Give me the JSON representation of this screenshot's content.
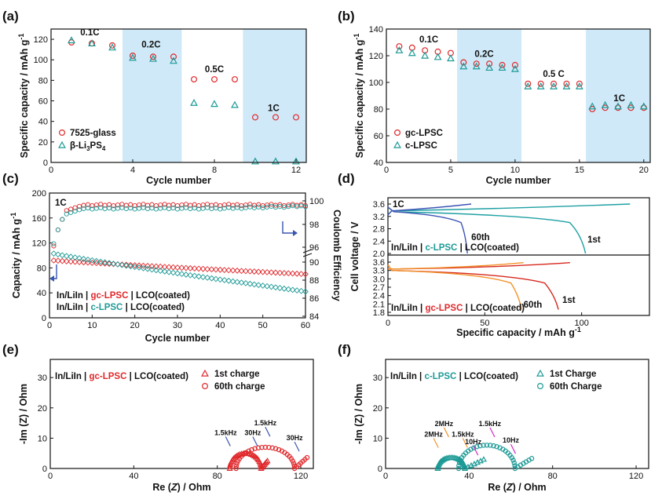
{
  "panel_labels": [
    "(a)",
    "(b)",
    "(c)",
    "(d)",
    "(e)",
    "(f)"
  ],
  "colors": {
    "red": "#e0282b",
    "teal": "#1d9a96",
    "band": "#cfe9f8",
    "blue": "#3a55b0",
    "orange": "#f2922a",
    "darkred": "#d6281e",
    "cyan": "#1fa0a3",
    "darkblue": "#3d54b5"
  },
  "chart_data": [
    {
      "id": "a",
      "type": "scatter",
      "xlabel": "Cycle number",
      "ylabel": "Specific capacity / mAh g-1",
      "xlim": [
        0,
        12.5
      ],
      "ylim": [
        0,
        130
      ],
      "xticks": [
        0,
        4,
        8,
        12
      ],
      "yticks": [
        0,
        20,
        40,
        60,
        80,
        100,
        120
      ],
      "bands": [
        [
          3.5,
          6.4
        ],
        [
          9.4,
          12.5
        ]
      ],
      "rate_labels": [
        {
          "text": "0.1C",
          "x": 1.9,
          "y": 124
        },
        {
          "text": "0.2C",
          "x": 4.9,
          "y": 112
        },
        {
          "text": "0.5C",
          "x": 8.0,
          "y": 88
        },
        {
          "text": "1C",
          "x": 10.9,
          "y": 50
        }
      ],
      "series": [
        {
          "name": "7525-glass",
          "marker": "circle",
          "color": "red",
          "x": [
            1,
            2,
            3,
            4,
            5,
            6,
            7,
            8,
            9,
            10,
            11,
            12
          ],
          "y": [
            117,
            116,
            114,
            104,
            103,
            103,
            81,
            81,
            81,
            44,
            44,
            44
          ]
        },
        {
          "name": "β-Li3PS4",
          "marker": "triangle",
          "color": "teal",
          "x": [
            1,
            2,
            3,
            4,
            5,
            6,
            7,
            8,
            9,
            10,
            11,
            12
          ],
          "y": [
            119,
            116,
            112,
            102,
            101,
            99,
            58,
            57,
            56,
            1,
            1,
            1
          ]
        }
      ],
      "legend_pos": "bottom-left"
    },
    {
      "id": "b",
      "type": "scatter",
      "xlabel": "Cycle number",
      "ylabel": "Specific capacity / mAh g-1",
      "xlim": [
        0,
        20.5
      ],
      "ylim": [
        40,
        140
      ],
      "xticks": [
        0,
        5,
        10,
        15,
        20
      ],
      "yticks": [
        40,
        60,
        80,
        100,
        120,
        140
      ],
      "bands": [
        [
          5.5,
          10.5
        ],
        [
          15.5,
          20.5
        ]
      ],
      "rate_labels": [
        {
          "text": "0.1C",
          "x": 3.3,
          "y": 130
        },
        {
          "text": "0.2C",
          "x": 7.6,
          "y": 119
        },
        {
          "text": "0.5 C",
          "x": 13.0,
          "y": 104
        },
        {
          "text": "1C",
          "x": 18.1,
          "y": 86
        }
      ],
      "series": [
        {
          "name": "gc-LPSC",
          "marker": "circle",
          "color": "red",
          "x": [
            1,
            2,
            3,
            4,
            5,
            6,
            7,
            8,
            9,
            10,
            11,
            12,
            13,
            14,
            15,
            16,
            17,
            18,
            19,
            20
          ],
          "y": [
            127,
            126,
            124,
            123,
            122,
            115,
            114,
            114,
            113,
            113,
            99,
            99,
            99,
            99,
            99,
            80,
            81,
            81,
            81,
            81
          ]
        },
        {
          "name": "c-LPSC",
          "marker": "triangle",
          "color": "teal",
          "x": [
            1,
            2,
            3,
            4,
            5,
            6,
            7,
            8,
            9,
            10,
            11,
            12,
            13,
            14,
            15,
            16,
            17,
            18,
            19,
            20
          ],
          "y": [
            124,
            122,
            120,
            119,
            118,
            112,
            112,
            111,
            111,
            110,
            97,
            97,
            97,
            97,
            97,
            82,
            83,
            82,
            83,
            82
          ]
        }
      ],
      "legend_pos": "bottom-left"
    },
    {
      "id": "c",
      "type": "scatter",
      "xlabel": "Cycle number",
      "ylabel": "Capacity / mAh g-1",
      "y2label": "Coulomb Efficiency",
      "xlim": [
        0,
        60
      ],
      "ylim": [
        0,
        200
      ],
      "xticks": [
        0,
        10,
        20,
        30,
        40,
        50,
        60
      ],
      "yticks": [
        0,
        40,
        80,
        120,
        160,
        200
      ],
      "y2ticks_upper": [
        "96",
        "98",
        "100"
      ],
      "y2ticks_lower": [
        "84",
        "86",
        "88",
        "90"
      ],
      "title_inset": "1C",
      "series_capacity": [
        {
          "name": "gc-LPSC capacity",
          "color": "red",
          "start": 92,
          "end": 70
        },
        {
          "name": "c-LPSC capacity",
          "color": "teal",
          "start": 103,
          "end": 42
        }
      ],
      "series_efficiency": [
        {
          "name": "gc-LPSC CE",
          "color": "red",
          "plateau": 99.65
        },
        {
          "name": "c-LPSC CE",
          "color": "teal",
          "plateau": 99.35
        }
      ],
      "legend": [
        {
          "prefix": "In/LiIn | ",
          "name": "gc-LPSC",
          "suffix": " | LCO(coated)",
          "color": "red"
        },
        {
          "prefix": "In/LiIn | ",
          "name": "c-LPSC",
          "suffix": " | LCO(coated)",
          "color": "teal"
        }
      ]
    },
    {
      "id": "d",
      "type": "line",
      "xlabel": "Specific capacity / mAh g-1",
      "ylabel": "Cell voltage / V",
      "xlim": [
        0,
        135
      ],
      "xticks": [
        0,
        50,
        100
      ],
      "upper_yticks": [
        "3.6",
        "3.2",
        "2.8",
        "2.4",
        "2.0"
      ],
      "lower_yticks": [
        "3.6",
        "3.3",
        "3.0",
        "2.7",
        "2.4",
        "2.1",
        "1.8"
      ],
      "title_inset": "1C",
      "upper_label": {
        "prefix": "In/LiIn | ",
        "name": "c-LPSC",
        "suffix": " | LCO(coated)"
      },
      "lower_label": {
        "prefix": "In/LiIn | ",
        "name": "gc-LPSC",
        "suffix": " | LCO(coated)"
      },
      "curve_labels": {
        "upper_60": "60th",
        "upper_1": "1st",
        "lower_60": "60th",
        "lower_1": "1st"
      },
      "upper_curves": [
        {
          "name": "1st",
          "color": "cyan",
          "charge_end": 125,
          "discharge_end": 102
        },
        {
          "name": "60th",
          "color": "darkblue",
          "charge_end": 43,
          "discharge_end": 41
        }
      ],
      "lower_curves": [
        {
          "name": "1st",
          "color": "darkred",
          "charge_end": 94,
          "discharge_end": 88
        },
        {
          "name": "60th",
          "color": "orange",
          "charge_end": 70,
          "discharge_end": 69
        }
      ]
    },
    {
      "id": "e",
      "type": "scatter",
      "xlabel": "Re (Z) / Ohm",
      "ylabel": "-Im (Z) / Ohm",
      "xlim": [
        0,
        126
      ],
      "ylim": [
        0,
        36
      ],
      "xticks": [
        0,
        40,
        80,
        120
      ],
      "yticks": [
        0,
        10,
        20,
        30
      ],
      "title_inset": {
        "prefix": "In/LiIn | ",
        "name": "gc-LPSC",
        "suffix": " | LCO(coated)"
      },
      "series": [
        {
          "name": "1st charge",
          "marker": "triangle",
          "color": "red",
          "arc": {
            "start": 86,
            "end": 101,
            "peak": 5.0
          },
          "tail": {
            "end": 104,
            "height": 2.5
          }
        },
        {
          "name": "60th charge",
          "marker": "circle",
          "color": "red",
          "arc": {
            "start": 89,
            "end": 117,
            "peak": 7.0
          },
          "tail": {
            "end": 123,
            "height": 3.6
          }
        }
      ],
      "annotations": [
        {
          "text": "1.5kHz",
          "x": 84,
          "y": 11
        },
        {
          "text": "30Hz",
          "x": 97,
          "y": 11
        },
        {
          "text": "1.5kHz",
          "x": 103,
          "y": 14.2
        },
        {
          "text": "30Hz",
          "x": 117,
          "y": 9.3
        }
      ]
    },
    {
      "id": "f",
      "type": "scatter",
      "xlabel": "Re (Z) / Ohm",
      "ylabel": "-Im (Z) / Ohm",
      "xlim": [
        0,
        126
      ],
      "ylim": [
        0,
        36
      ],
      "xticks": [
        0,
        40,
        80,
        120
      ],
      "yticks": [
        0,
        10,
        20,
        30
      ],
      "title_inset": {
        "prefix": "In/LiIn | ",
        "name": "c-LPSC",
        "suffix": " | LCO(coated)"
      },
      "series": [
        {
          "name": "1st Charge",
          "marker": "triangle",
          "color": "teal",
          "arc": {
            "start": 25,
            "end": 38,
            "peak": 3.6
          },
          "tail": {
            "end": 47,
            "height": 3.0
          }
        },
        {
          "name": "60th Charge",
          "marker": "circle",
          "color": "teal",
          "arc": {
            "start": 35,
            "end": 62,
            "peak": 7.7
          },
          "tail": {
            "end": 70,
            "height": 3.3
          }
        }
      ],
      "annotations": [
        {
          "text": "2MHz",
          "x": 28,
          "y": 14.0,
          "color": "orange"
        },
        {
          "text": "2MHz",
          "x": 23,
          "y": 10.5,
          "color": "orange"
        },
        {
          "text": "1.5kHz",
          "x": 37,
          "y": 10.5,
          "color": "orange"
        },
        {
          "text": "1.5kHz",
          "x": 50,
          "y": 14.0,
          "color": "magenta"
        },
        {
          "text": "10Hz",
          "x": 42,
          "y": 8.0,
          "color": "magenta"
        },
        {
          "text": "10Hz",
          "x": 60,
          "y": 8.5,
          "color": "magenta"
        }
      ]
    }
  ]
}
